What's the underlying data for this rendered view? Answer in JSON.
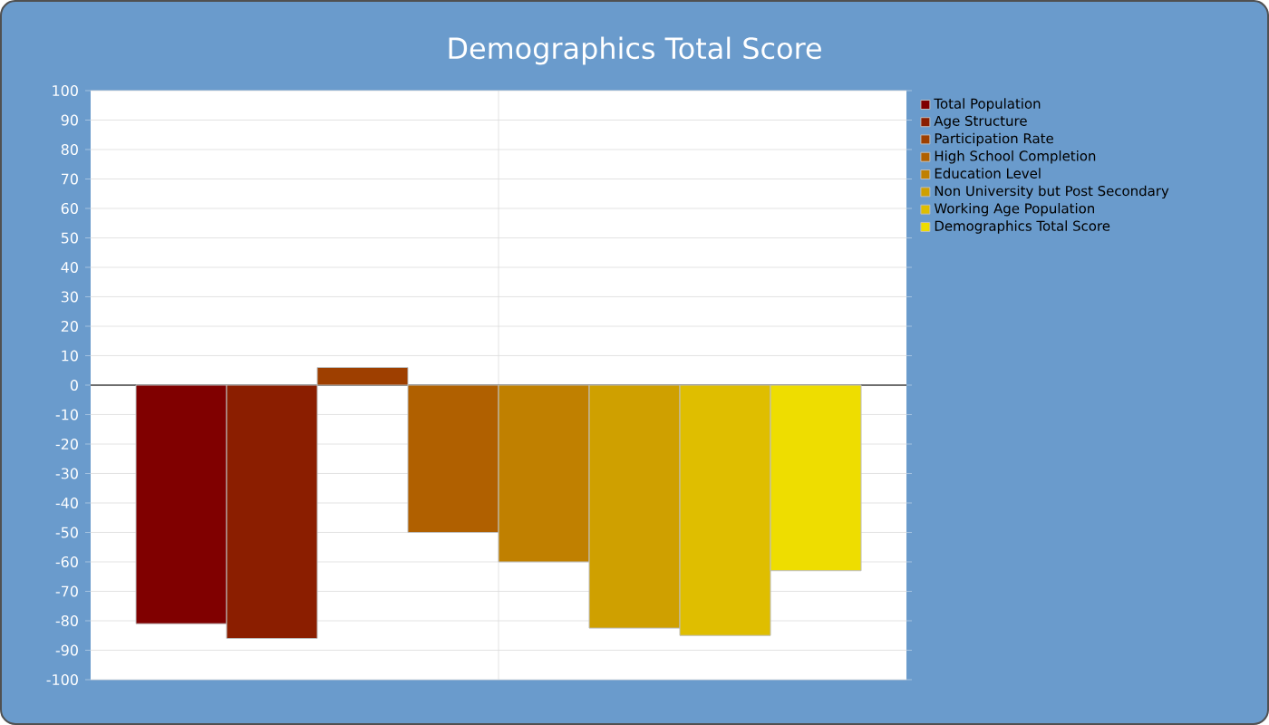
{
  "chart_data": {
    "type": "bar",
    "title": "Demographics Total Score",
    "categories": [
      null
    ],
    "series": [
      {
        "name": "Total Population",
        "color": "#800000",
        "values": [
          -81
        ]
      },
      {
        "name": "Age Structure",
        "color": "#8b1e00",
        "values": [
          -86
        ]
      },
      {
        "name": "Participation Rate",
        "color": "#9e3f00",
        "values": [
          6
        ]
      },
      {
        "name": "High School Completion",
        "color": "#b06000",
        "values": [
          -50
        ]
      },
      {
        "name": "Education Level",
        "color": "#c08000",
        "values": [
          -60
        ]
      },
      {
        "name": "Non University but Post Secondary",
        "color": "#cfa000",
        "values": [
          -82.5
        ]
      },
      {
        "name": "Working Age Population",
        "color": "#dfbe00",
        "values": [
          -85
        ]
      },
      {
        "name": "Demographics Total Score",
        "color": "#eedd00",
        "values": [
          -63
        ]
      }
    ],
    "ylim": [
      -100,
      100
    ],
    "yticks": [
      -100,
      -90,
      -80,
      -70,
      -60,
      -50,
      -40,
      -30,
      -20,
      -10,
      0,
      10,
      20,
      30,
      40,
      50,
      60,
      70,
      80,
      90,
      100
    ],
    "grid": true,
    "legend": "top right"
  }
}
